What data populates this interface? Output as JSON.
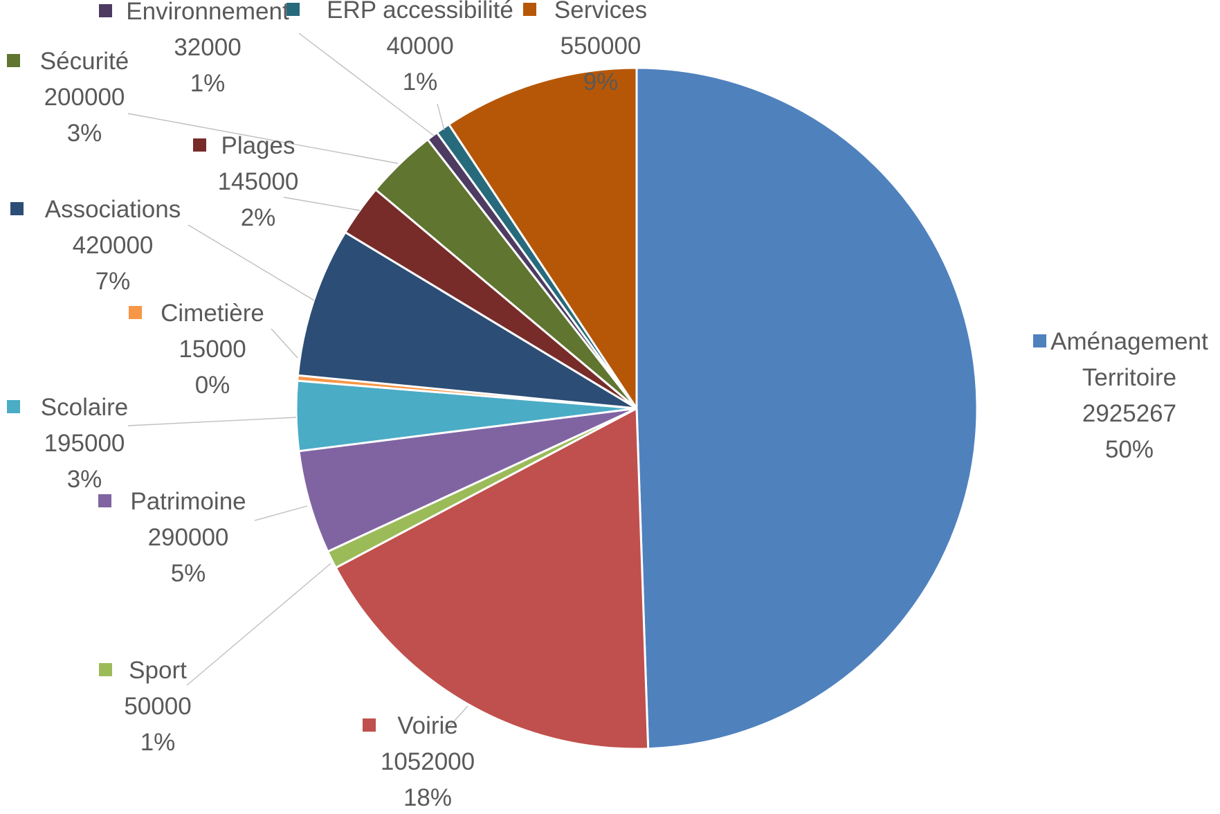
{
  "chart_data": {
    "type": "pie",
    "start_angle_deg": 0,
    "direction": "clockwise",
    "slices": [
      {
        "name": "Aménagement Territoire",
        "value": 2925267,
        "percent": "50%",
        "color": "#4f81bd"
      },
      {
        "name": "Voirie",
        "value": 1052000,
        "percent": "18%",
        "color": "#c0504d"
      },
      {
        "name": "Sport",
        "value": 50000,
        "percent": "1%",
        "color": "#9bbb59"
      },
      {
        "name": "Patrimoine",
        "value": 290000,
        "percent": "5%",
        "color": "#8064a2"
      },
      {
        "name": "Scolaire",
        "value": 195000,
        "percent": "3%",
        "color": "#4bacc6"
      },
      {
        "name": "Cimetière",
        "value": 15000,
        "percent": "0%",
        "color": "#f79646"
      },
      {
        "name": "Associations",
        "value": 420000,
        "percent": "7%",
        "color": "#2c4d75"
      },
      {
        "name": "Plages",
        "value": 145000,
        "percent": "2%",
        "color": "#772c2a"
      },
      {
        "name": "Sécurité",
        "value": 200000,
        "percent": "3%",
        "color": "#5f7530"
      },
      {
        "name": "Environnement",
        "value": 32000,
        "percent": "1%",
        "color": "#4d3b62"
      },
      {
        "name": "ERP accessibilité",
        "value": 40000,
        "percent": "1%",
        "color": "#276a7c"
      },
      {
        "name": "Services",
        "value": 550000,
        "percent": "9%",
        "color": "#b65708"
      }
    ],
    "legend": "none",
    "data_labels": "category, value, percent"
  }
}
